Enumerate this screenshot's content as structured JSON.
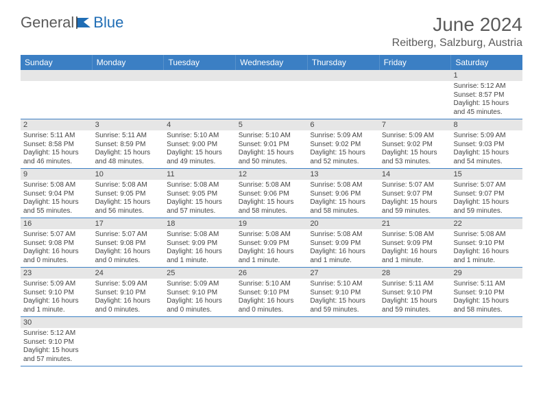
{
  "logo": {
    "text1": "General",
    "text2": "Blue"
  },
  "title": "June 2024",
  "location": "Reitberg, Salzburg, Austria",
  "colors": {
    "header_bg": "#3b7fc4",
    "header_text": "#ffffff",
    "daynum_bg": "#e6e6e6",
    "border": "#3b7fc4",
    "body_text": "#444444",
    "title_text": "#5a5a5a",
    "logo_blue": "#1f6db5"
  },
  "dayNames": [
    "Sunday",
    "Monday",
    "Tuesday",
    "Wednesday",
    "Thursday",
    "Friday",
    "Saturday"
  ],
  "weeks": [
    [
      {
        "n": "",
        "s": ""
      },
      {
        "n": "",
        "s": ""
      },
      {
        "n": "",
        "s": ""
      },
      {
        "n": "",
        "s": ""
      },
      {
        "n": "",
        "s": ""
      },
      {
        "n": "",
        "s": ""
      },
      {
        "n": "1",
        "s": "Sunrise: 5:12 AM\nSunset: 8:57 PM\nDaylight: 15 hours and 45 minutes."
      }
    ],
    [
      {
        "n": "2",
        "s": "Sunrise: 5:11 AM\nSunset: 8:58 PM\nDaylight: 15 hours and 46 minutes."
      },
      {
        "n": "3",
        "s": "Sunrise: 5:11 AM\nSunset: 8:59 PM\nDaylight: 15 hours and 48 minutes."
      },
      {
        "n": "4",
        "s": "Sunrise: 5:10 AM\nSunset: 9:00 PM\nDaylight: 15 hours and 49 minutes."
      },
      {
        "n": "5",
        "s": "Sunrise: 5:10 AM\nSunset: 9:01 PM\nDaylight: 15 hours and 50 minutes."
      },
      {
        "n": "6",
        "s": "Sunrise: 5:09 AM\nSunset: 9:02 PM\nDaylight: 15 hours and 52 minutes."
      },
      {
        "n": "7",
        "s": "Sunrise: 5:09 AM\nSunset: 9:02 PM\nDaylight: 15 hours and 53 minutes."
      },
      {
        "n": "8",
        "s": "Sunrise: 5:09 AM\nSunset: 9:03 PM\nDaylight: 15 hours and 54 minutes."
      }
    ],
    [
      {
        "n": "9",
        "s": "Sunrise: 5:08 AM\nSunset: 9:04 PM\nDaylight: 15 hours and 55 minutes."
      },
      {
        "n": "10",
        "s": "Sunrise: 5:08 AM\nSunset: 9:05 PM\nDaylight: 15 hours and 56 minutes."
      },
      {
        "n": "11",
        "s": "Sunrise: 5:08 AM\nSunset: 9:05 PM\nDaylight: 15 hours and 57 minutes."
      },
      {
        "n": "12",
        "s": "Sunrise: 5:08 AM\nSunset: 9:06 PM\nDaylight: 15 hours and 58 minutes."
      },
      {
        "n": "13",
        "s": "Sunrise: 5:08 AM\nSunset: 9:06 PM\nDaylight: 15 hours and 58 minutes."
      },
      {
        "n": "14",
        "s": "Sunrise: 5:07 AM\nSunset: 9:07 PM\nDaylight: 15 hours and 59 minutes."
      },
      {
        "n": "15",
        "s": "Sunrise: 5:07 AM\nSunset: 9:07 PM\nDaylight: 15 hours and 59 minutes."
      }
    ],
    [
      {
        "n": "16",
        "s": "Sunrise: 5:07 AM\nSunset: 9:08 PM\nDaylight: 16 hours and 0 minutes."
      },
      {
        "n": "17",
        "s": "Sunrise: 5:07 AM\nSunset: 9:08 PM\nDaylight: 16 hours and 0 minutes."
      },
      {
        "n": "18",
        "s": "Sunrise: 5:08 AM\nSunset: 9:09 PM\nDaylight: 16 hours and 1 minute."
      },
      {
        "n": "19",
        "s": "Sunrise: 5:08 AM\nSunset: 9:09 PM\nDaylight: 16 hours and 1 minute."
      },
      {
        "n": "20",
        "s": "Sunrise: 5:08 AM\nSunset: 9:09 PM\nDaylight: 16 hours and 1 minute."
      },
      {
        "n": "21",
        "s": "Sunrise: 5:08 AM\nSunset: 9:09 PM\nDaylight: 16 hours and 1 minute."
      },
      {
        "n": "22",
        "s": "Sunrise: 5:08 AM\nSunset: 9:10 PM\nDaylight: 16 hours and 1 minute."
      }
    ],
    [
      {
        "n": "23",
        "s": "Sunrise: 5:09 AM\nSunset: 9:10 PM\nDaylight: 16 hours and 1 minute."
      },
      {
        "n": "24",
        "s": "Sunrise: 5:09 AM\nSunset: 9:10 PM\nDaylight: 16 hours and 0 minutes."
      },
      {
        "n": "25",
        "s": "Sunrise: 5:09 AM\nSunset: 9:10 PM\nDaylight: 16 hours and 0 minutes."
      },
      {
        "n": "26",
        "s": "Sunrise: 5:10 AM\nSunset: 9:10 PM\nDaylight: 16 hours and 0 minutes."
      },
      {
        "n": "27",
        "s": "Sunrise: 5:10 AM\nSunset: 9:10 PM\nDaylight: 15 hours and 59 minutes."
      },
      {
        "n": "28",
        "s": "Sunrise: 5:11 AM\nSunset: 9:10 PM\nDaylight: 15 hours and 59 minutes."
      },
      {
        "n": "29",
        "s": "Sunrise: 5:11 AM\nSunset: 9:10 PM\nDaylight: 15 hours and 58 minutes."
      }
    ],
    [
      {
        "n": "30",
        "s": "Sunrise: 5:12 AM\nSunset: 9:10 PM\nDaylight: 15 hours and 57 minutes."
      },
      {
        "n": "",
        "s": ""
      },
      {
        "n": "",
        "s": ""
      },
      {
        "n": "",
        "s": ""
      },
      {
        "n": "",
        "s": ""
      },
      {
        "n": "",
        "s": ""
      },
      {
        "n": "",
        "s": ""
      }
    ]
  ]
}
